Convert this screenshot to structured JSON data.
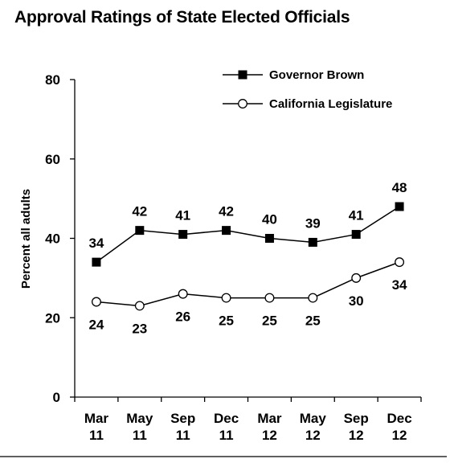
{
  "chart_data": {
    "type": "line",
    "title": "Approval Ratings of State Elected Officials",
    "ylabel": "Percent all adults",
    "xlabel": "",
    "ylim": [
      0,
      80
    ],
    "yticks": [
      0,
      20,
      40,
      60,
      80
    ],
    "grid": false,
    "legend_position": "top-right",
    "categories": [
      [
        "Mar",
        "11"
      ],
      [
        "May",
        "11"
      ],
      [
        "Sep",
        "11"
      ],
      [
        "Dec",
        "11"
      ],
      [
        "Mar",
        "12"
      ],
      [
        "May",
        "12"
      ],
      [
        "Sep",
        "12"
      ],
      [
        "Dec",
        "12"
      ]
    ],
    "series": [
      {
        "name": "Governor Brown",
        "marker": "filled-square",
        "color": "#000000",
        "values": [
          34,
          42,
          41,
          42,
          40,
          39,
          41,
          48
        ],
        "label_position": "above"
      },
      {
        "name": "California Legislature",
        "marker": "open-circle",
        "color": "#000000",
        "values": [
          24,
          23,
          26,
          25,
          25,
          25,
          30,
          34
        ],
        "label_position": "below"
      }
    ]
  }
}
